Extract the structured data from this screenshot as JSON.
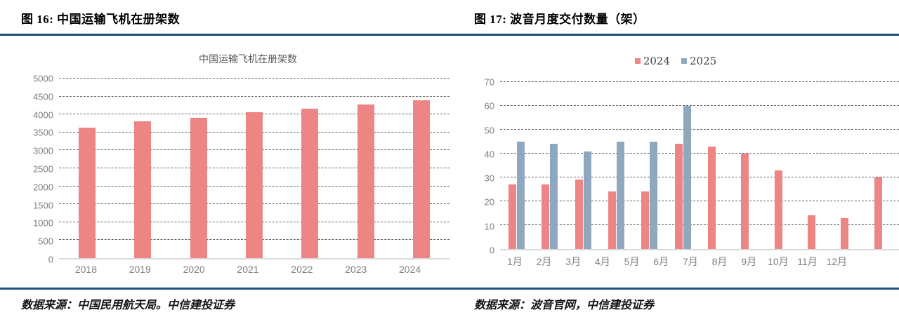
{
  "page": {
    "background": "#ffffff",
    "rule_color": "#1f4e79"
  },
  "figures": [
    {
      "caption": "图 16: 中国运输飞机在册架数",
      "source": "数据来源：中国民用航天局。中信建投证券"
    },
    {
      "caption": "图 17: 波音月度交付数量（架）",
      "source": "数据来源：波音官网，中信建投证券"
    }
  ],
  "chart_data": [
    {
      "type": "bar",
      "title": "中国运输飞机在册架数",
      "categories": [
        "2018",
        "2019",
        "2020",
        "2021",
        "2022",
        "2023",
        "2024"
      ],
      "values": [
        3639,
        3818,
        3903,
        4054,
        4165,
        4270,
        4394
      ],
      "bar_color": "#ee8585",
      "xlabel": "",
      "ylabel": "",
      "ylim": [
        0,
        5000
      ],
      "ytick_step": 500,
      "grid": "horizontal-dashed",
      "legend_position": "none"
    },
    {
      "type": "bar",
      "title": "",
      "categories": [
        "1月",
        "2月",
        "3月",
        "4月",
        "5月",
        "6月",
        "7月",
        "8月",
        "9月",
        "10月",
        "11月",
        "12月"
      ],
      "series": [
        {
          "name": "2024",
          "color": "#ee8585",
          "values": [
            27,
            27,
            29,
            24,
            24,
            44,
            43,
            40,
            33,
            14,
            13,
            30
          ]
        },
        {
          "name": "2025",
          "color": "#8fa8c0",
          "values": [
            45,
            44,
            41,
            45,
            45,
            60,
            null,
            null,
            null,
            null,
            null,
            null
          ]
        }
      ],
      "xlabel": "",
      "ylabel": "",
      "ylim": [
        0,
        70
      ],
      "ytick_step": 10,
      "grid": "horizontal-dashed",
      "legend_position": "top"
    }
  ]
}
